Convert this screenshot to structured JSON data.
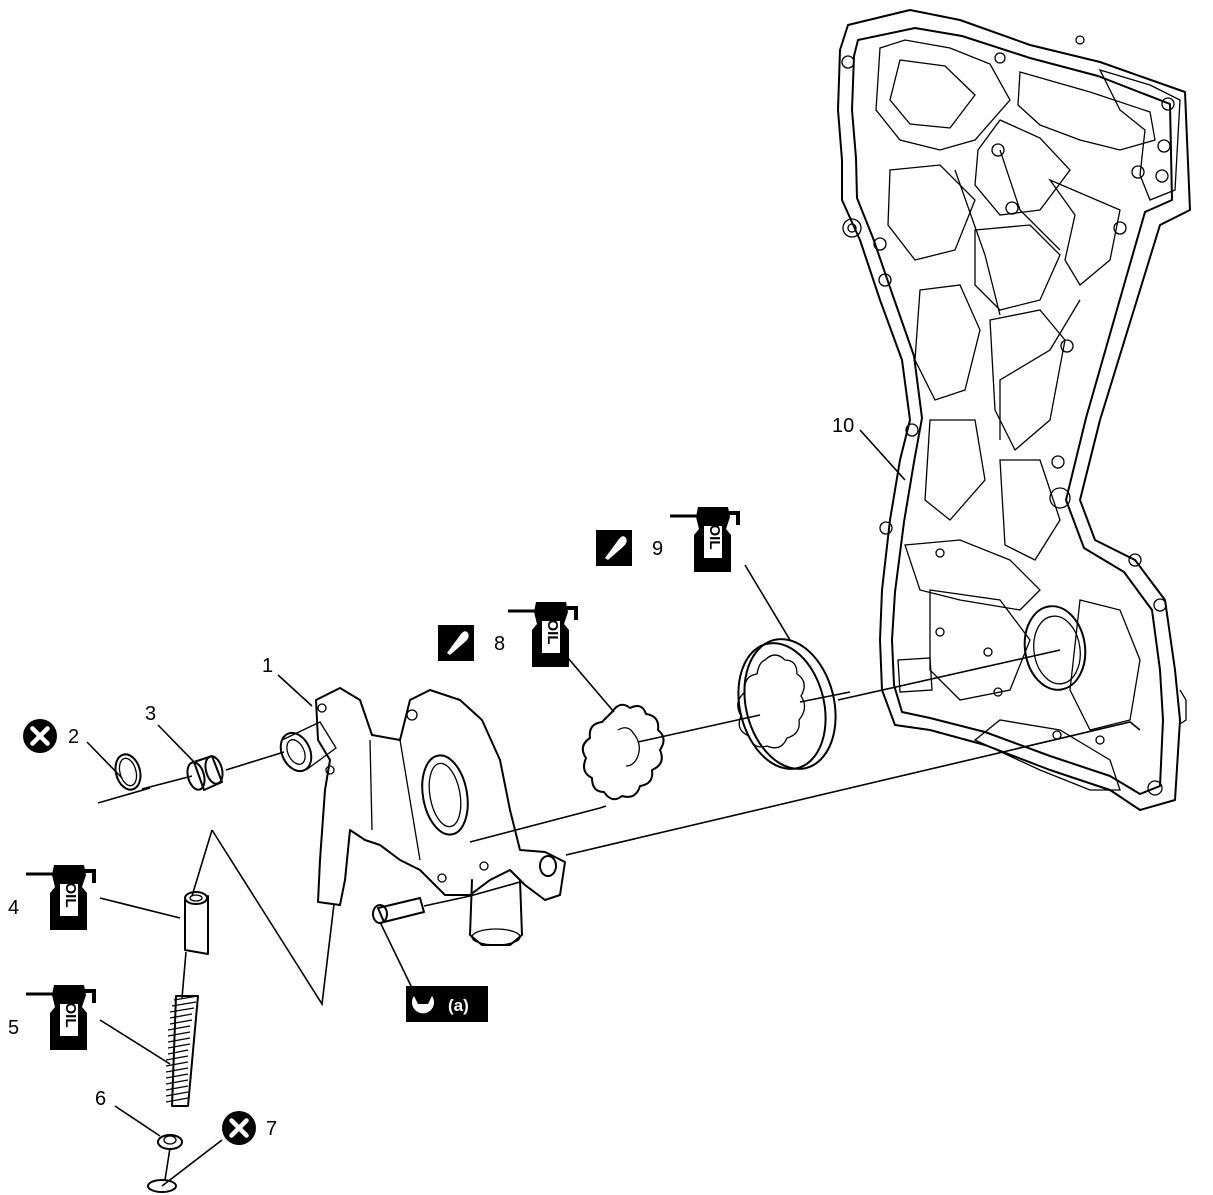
{
  "callouts": [
    "1",
    "2",
    "3",
    "4",
    "5",
    "6",
    "7",
    "8",
    "9",
    "10"
  ],
  "torque_label": "(a)",
  "oil_icon_text": "OIL",
  "icons": {
    "replace": "do-not-reuse-icon",
    "oil": "apply-engine-oil-icon",
    "sealant": "apply-sealant-icon",
    "torque": "tighten-torque-wrench-icon"
  }
}
